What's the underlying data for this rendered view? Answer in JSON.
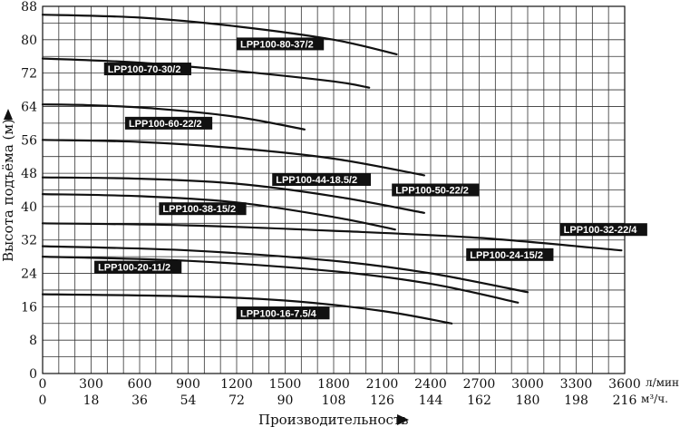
{
  "chart_data": {
    "type": "line",
    "ylabel": "Высота подъёма (м)",
    "xlabel": "Производительность",
    "x_unit_primary": "л/мин.",
    "x_unit_secondary": "м³/ч.",
    "xlim": [
      0,
      3600
    ],
    "ylim": [
      0,
      88
    ],
    "x_ticks_primary": [
      "0",
      "300",
      "600",
      "900",
      "1200",
      "1500",
      "1800",
      "2100",
      "2400",
      "2700",
      "3000",
      "3300",
      "3600"
    ],
    "x_ticks_secondary": [
      "0",
      "18",
      "36",
      "54",
      "72",
      "90",
      "108",
      "126",
      "144",
      "162",
      "180",
      "198",
      "216"
    ],
    "y_ticks": [
      "0",
      "8",
      "16",
      "24",
      "32",
      "40",
      "48",
      "56",
      "64",
      "72",
      "80",
      "88"
    ],
    "grid": true,
    "series": [
      {
        "name": "LPP100-80-37/2",
        "x": [
          0,
          600,
          1200,
          1800,
          2190
        ],
        "y": [
          86,
          85.3,
          83.2,
          80,
          76.5
        ],
        "label_at": [
          1200,
          79
        ]
      },
      {
        "name": "LPP100-70-30/2",
        "x": [
          0,
          600,
          1200,
          1800,
          2020
        ],
        "y": [
          75.5,
          74.5,
          72.5,
          70,
          68.5
        ],
        "label_at": [
          380,
          73
        ]
      },
      {
        "name": "LPP100-60-22/2",
        "x": [
          0,
          300,
          700,
          1200,
          1620
        ],
        "y": [
          64.5,
          64.3,
          63.5,
          61.5,
          58.5
        ],
        "label_at": [
          510,
          60
        ]
      },
      {
        "name": "LPP100-50-22/2",
        "x": [
          0,
          600,
          1200,
          1800,
          2360
        ],
        "y": [
          56,
          55.5,
          54,
          51.5,
          47.5
        ],
        "label_at": [
          2160,
          44
        ]
      },
      {
        "name": "LPP100-44-18.5/2",
        "x": [
          0,
          600,
          1200,
          1800,
          2360
        ],
        "y": [
          47,
          46.7,
          45.5,
          42.5,
          38.5
        ],
        "label_at": [
          1420,
          46.5
        ]
      },
      {
        "name": "LPP100-38-15/2",
        "x": [
          0,
          600,
          1200,
          1800,
          2180
        ],
        "y": [
          43,
          42.5,
          41,
          37.5,
          34.5
        ],
        "label_at": [
          720,
          39.5
        ]
      },
      {
        "name": "LPP100-32-22/4",
        "x": [
          0,
          900,
          1800,
          2700,
          3580
        ],
        "y": [
          36,
          35.5,
          34.2,
          32.5,
          29.5
        ],
        "label_at": [
          3200,
          34.5
        ]
      },
      {
        "name": "LPP100-24-15/2",
        "x": [
          0,
          900,
          1800,
          2400,
          3000
        ],
        "y": [
          30.5,
          29.5,
          27,
          24,
          19.5
        ],
        "label_at": [
          2620,
          28.5
        ]
      },
      {
        "name": "LPP100-20-11/2",
        "x": [
          0,
          900,
          1800,
          2400,
          2940
        ],
        "y": [
          28,
          27,
          24.5,
          21.5,
          17
        ],
        "label_at": [
          320,
          25.5
        ]
      },
      {
        "name": "LPP100-16-7.5/4",
        "x": [
          0,
          900,
          1500,
          2100,
          2530
        ],
        "y": [
          19,
          18.5,
          17.5,
          15,
          12
        ],
        "label_at": [
          1200,
          14.5
        ]
      }
    ]
  }
}
